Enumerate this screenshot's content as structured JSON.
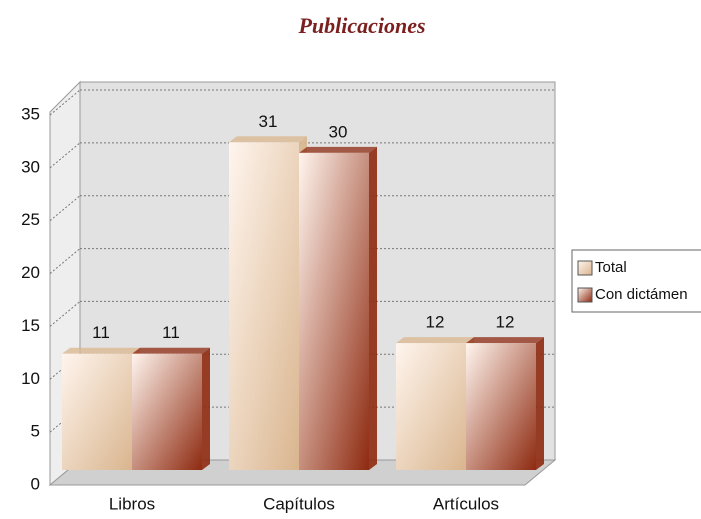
{
  "chart_data": {
    "type": "bar3d",
    "title": "Publicaciones",
    "categories": [
      "Libros",
      "Capítulos",
      "Artículos"
    ],
    "series": [
      {
        "name": "Total",
        "color": "#d9b58e",
        "values": [
          11,
          31,
          12
        ]
      },
      {
        "name": "Con dictámen",
        "color": "#8e2a10",
        "values": [
          11,
          30,
          12
        ]
      }
    ],
    "ylim": [
      0,
      35
    ],
    "yticks": [
      0,
      5,
      10,
      15,
      20,
      25,
      30,
      35
    ],
    "grid": true,
    "legend": "right"
  }
}
